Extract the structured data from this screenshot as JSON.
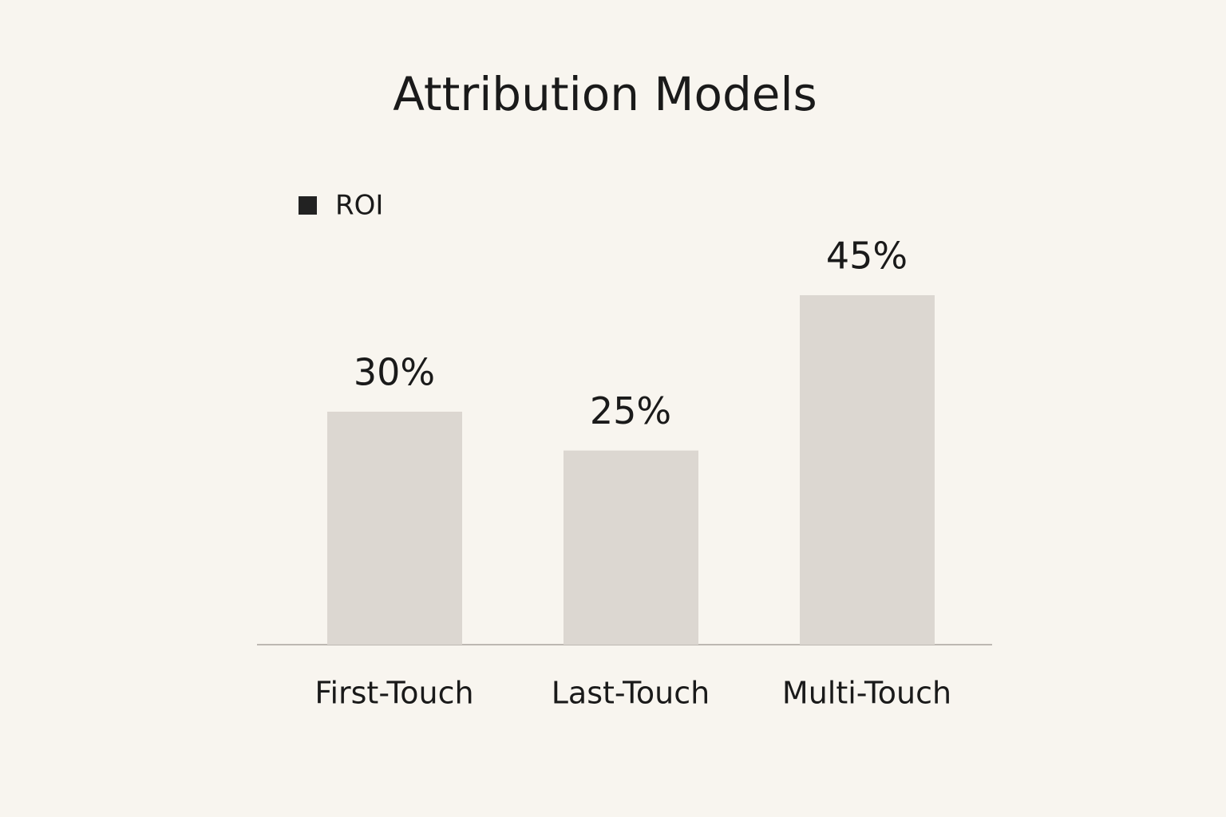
{
  "chart_data": {
    "type": "bar",
    "title": "Attribution Models",
    "categories": [
      "First-Touch",
      "Last-Touch",
      "Multi-Touch"
    ],
    "series": [
      {
        "name": "ROI",
        "color": "#dcd7d1",
        "values": [
          30,
          25,
          45
        ],
        "value_labels": [
          "30%",
          "25%",
          "45%"
        ]
      }
    ],
    "legend": "top-left"
  }
}
